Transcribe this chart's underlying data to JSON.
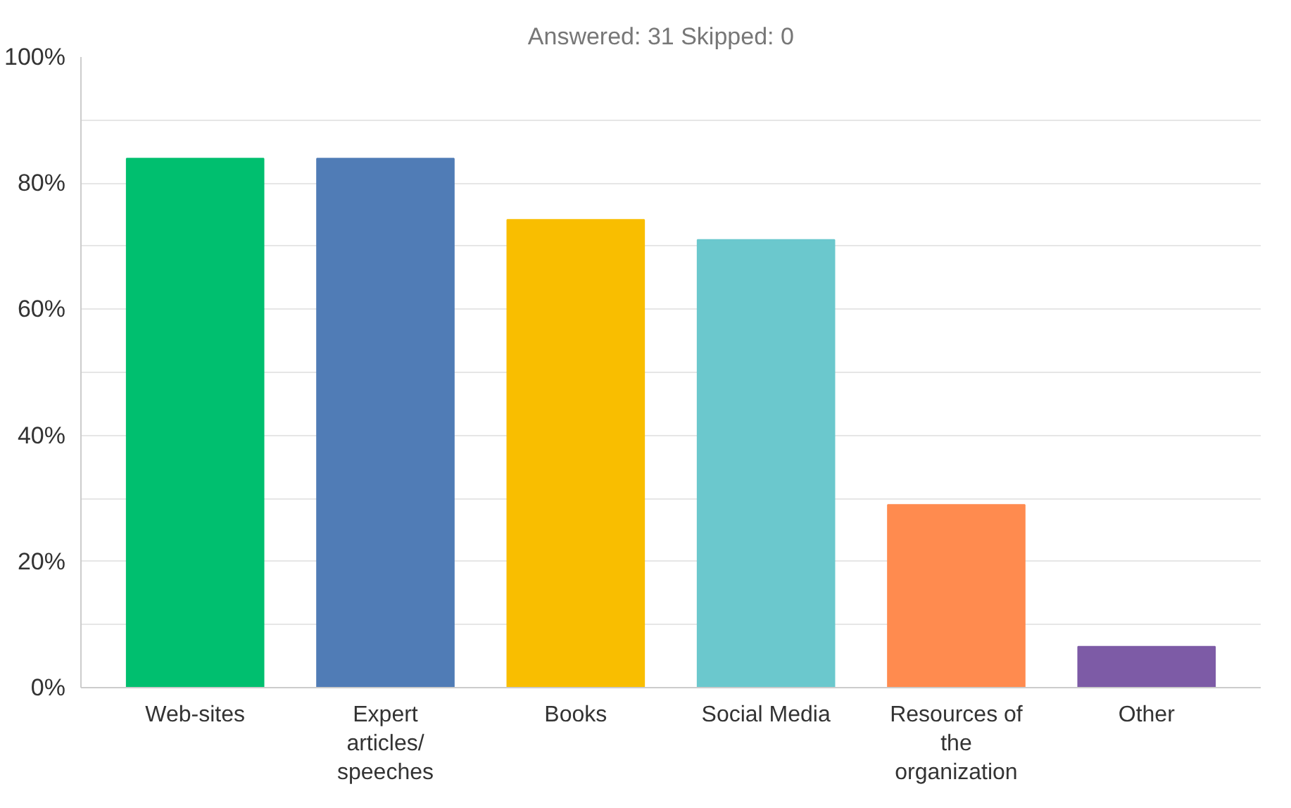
{
  "chart_data": {
    "type": "bar",
    "title": "Answered: 31    Skipped: 0",
    "categories": [
      "Web-sites",
      "Expert articles/ speeches",
      "Books",
      "Social Media",
      "Resources of the organization",
      "Other"
    ],
    "values": [
      83.9,
      83.9,
      74.2,
      71.0,
      29.0,
      6.5
    ],
    "colors": [
      "#00bf6f",
      "#507cb6",
      "#f9be00",
      "#6bc8cd",
      "#ff8b4f",
      "#7d5ba6"
    ],
    "ylim": [
      0,
      100
    ],
    "yticks": [
      {
        "value": 0,
        "label": "0%"
      },
      {
        "value": 10,
        "label": null
      },
      {
        "value": 20,
        "label": "20%"
      },
      {
        "value": 30,
        "label": null
      },
      {
        "value": 40,
        "label": "40%"
      },
      {
        "value": 50,
        "label": null
      },
      {
        "value": 60,
        "label": "60%"
      },
      {
        "value": 70,
        "label": null
      },
      {
        "value": 80,
        "label": "80%"
      },
      {
        "value": 90,
        "label": null
      },
      {
        "value": 100,
        "label": "100%"
      }
    ],
    "grid": "y"
  }
}
